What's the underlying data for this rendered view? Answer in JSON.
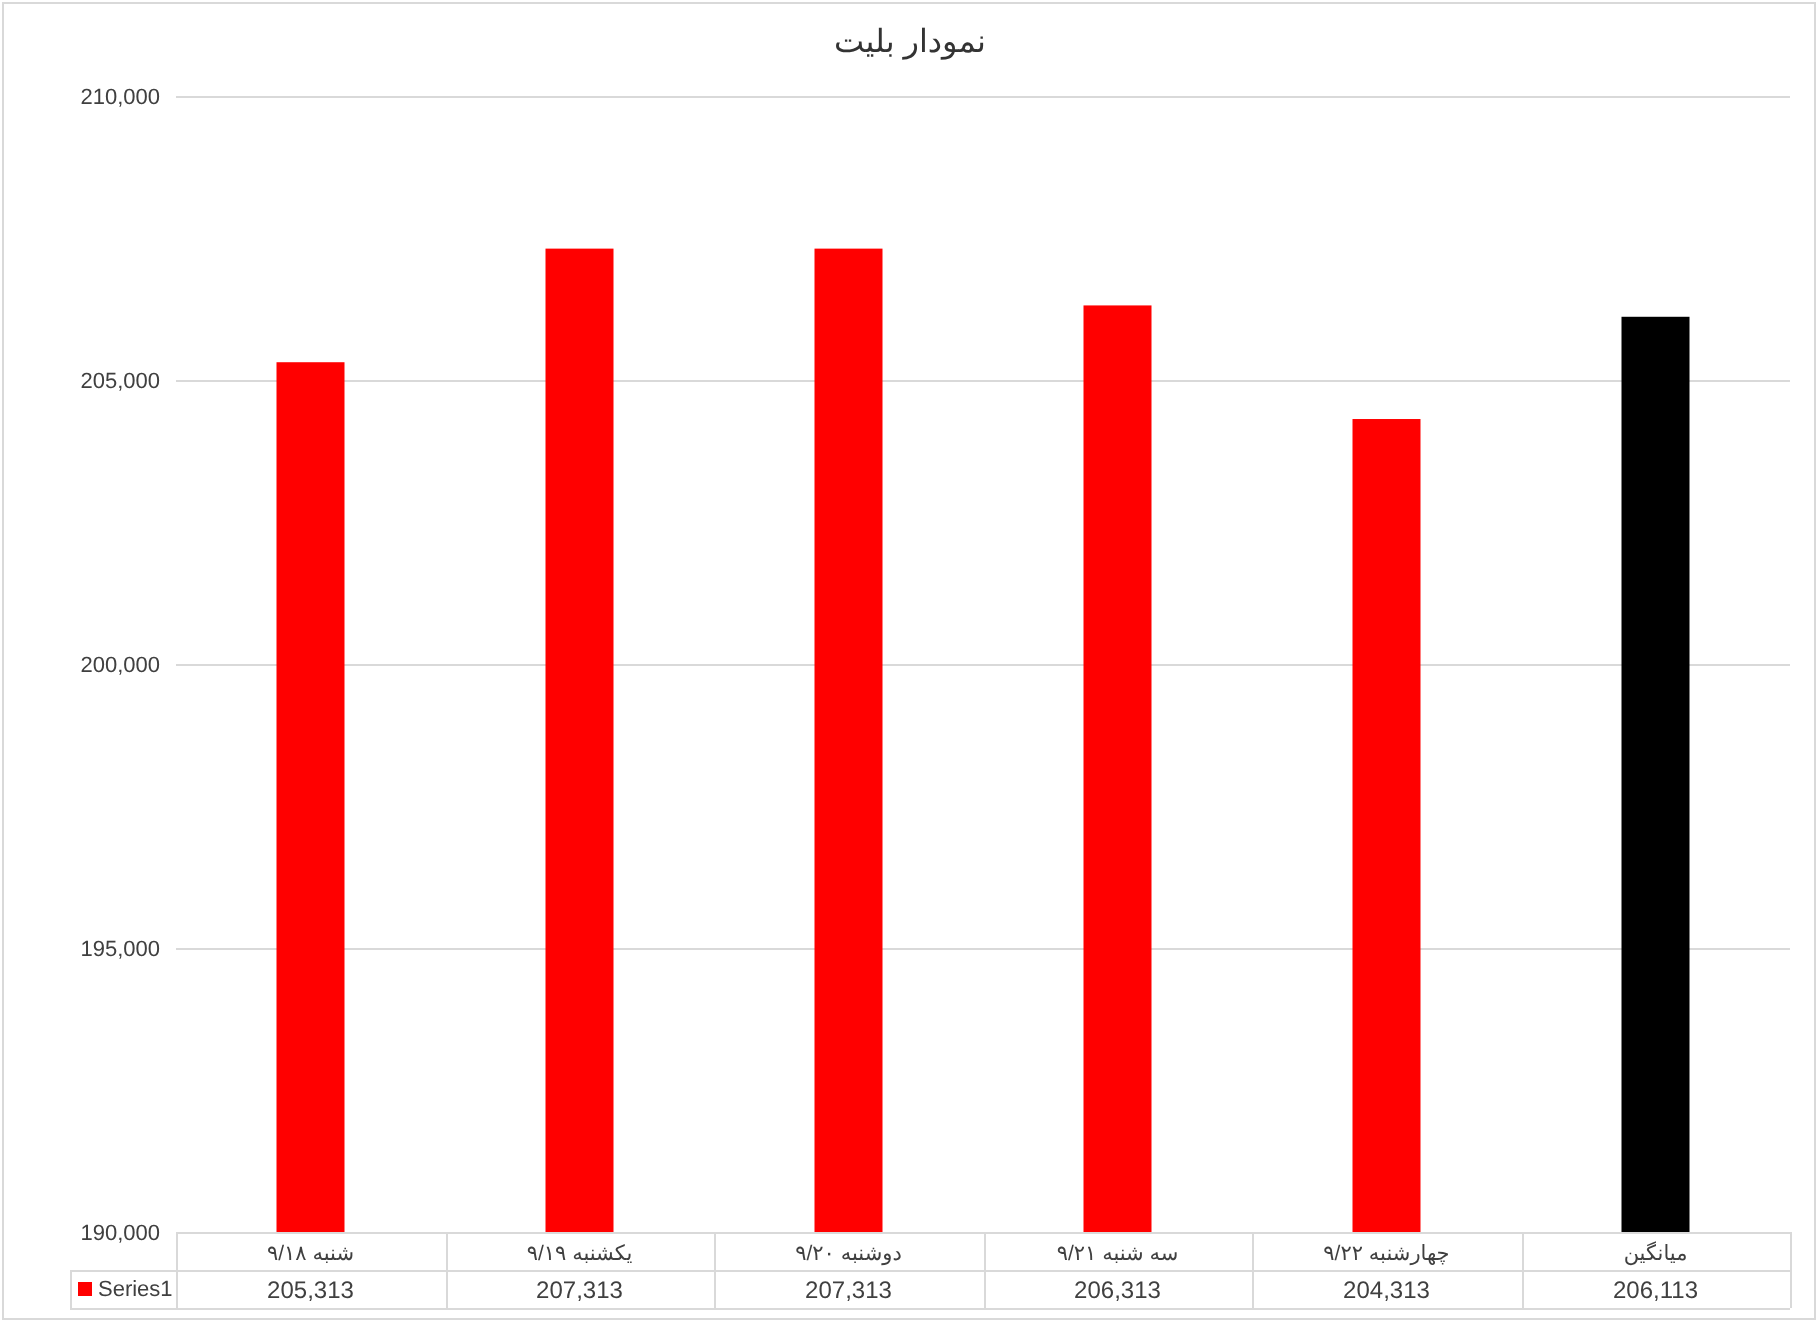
{
  "chart_data": {
    "type": "bar",
    "title": "نمودار بلیت",
    "categories": [
      "شنبه ۹/۱۸",
      "یکشنبه ۹/۱۹",
      "دوشنبه ۹/۲۰",
      "سه شنبه ۹/۲۱",
      "چهارشنبه ۹/۲۲",
      "میانگین"
    ],
    "series": [
      {
        "name": "Series1",
        "color": "#ff0000",
        "colors": [
          "#ff0000",
          "#ff0000",
          "#ff0000",
          "#ff0000",
          "#ff0000",
          "#000000"
        ],
        "values": [
          205313,
          207313,
          207313,
          206313,
          204313,
          206113
        ],
        "value_labels": [
          "205,313",
          "207,313",
          "207,313",
          "206,313",
          "204,313",
          "206,113"
        ]
      }
    ],
    "ylim": [
      190000,
      210000
    ],
    "yticks": [
      {
        "value": 190000,
        "label": "190,000"
      },
      {
        "value": 195000,
        "label": "195,000"
      },
      {
        "value": 200000,
        "label": "200,000"
      },
      {
        "value": 205000,
        "label": "205,000"
      },
      {
        "value": 210000,
        "label": "210,000"
      }
    ],
    "grid": "y",
    "legend": "bottom"
  }
}
